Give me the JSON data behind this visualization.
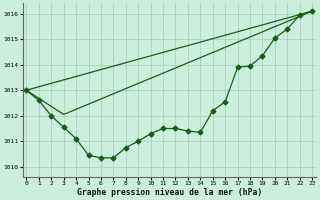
{
  "title": "Graphe pression niveau de la mer (hPa)",
  "background_color": "#cceedd",
  "grid_color": "#aaccbb",
  "line_color": "#1a5c1a",
  "xlim": [
    -0.3,
    23.3
  ],
  "ylim": [
    1009.6,
    1016.4
  ],
  "yticks": [
    1010,
    1011,
    1012,
    1013,
    1014,
    1015,
    1016
  ],
  "xticks": [
    0,
    1,
    2,
    3,
    4,
    5,
    6,
    7,
    8,
    9,
    10,
    11,
    12,
    13,
    14,
    15,
    16,
    17,
    18,
    19,
    20,
    21,
    22,
    23
  ],
  "pressure": [
    1013.0,
    1012.6,
    1012.0,
    1011.55,
    1011.1,
    1010.45,
    1010.35,
    1010.35,
    1010.75,
    1011.0,
    1011.3,
    1011.5,
    1011.5,
    1011.4,
    1011.35,
    1012.2,
    1012.55,
    1013.9,
    1013.95,
    1014.35,
    1015.05,
    1015.4,
    1015.95,
    1016.1
  ],
  "trend1_x": [
    0,
    23
  ],
  "trend1_y": [
    1013.0,
    1016.1
  ],
  "trend2_x": [
    0,
    3,
    23
  ],
  "trend2_y": [
    1013.0,
    1012.05,
    1016.1
  ],
  "markersize": 2.5,
  "linewidth": 0.9,
  "title_fontsize": 5.8,
  "tick_fontsize": 4.5
}
